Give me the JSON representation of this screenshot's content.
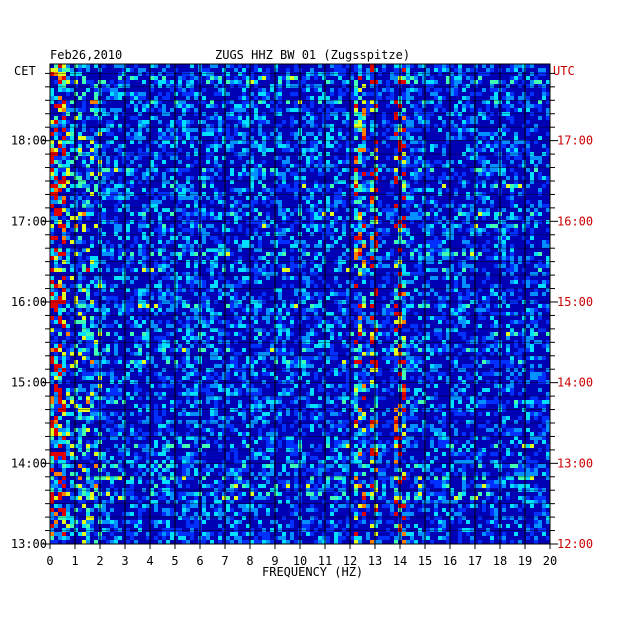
{
  "chart_data": {
    "type": "heatmap",
    "date": "Feb26,2010",
    "title": "ZUGS HHZ BW 01 (Zugsspitze)",
    "xlabel": "FREQUENCY (HZ)",
    "left_axis_label": "CET",
    "right_axis_label": "UTC",
    "x_range": [
      0,
      20
    ],
    "x_ticks": [
      "0",
      "1",
      "2",
      "3",
      "4",
      "5",
      "6",
      "7",
      "8",
      "9",
      "10",
      "11",
      "12",
      "13",
      "14",
      "15",
      "16",
      "17",
      "18",
      "19",
      "20"
    ],
    "left_ticks": [
      {
        "hour": 18,
        "label": "18:00"
      },
      {
        "hour": 17,
        "label": "17:00"
      },
      {
        "hour": 16,
        "label": "16:00"
      },
      {
        "hour": 15,
        "label": "15:00"
      },
      {
        "hour": 14,
        "label": "14:00"
      },
      {
        "hour": 13,
        "label": "13:00"
      }
    ],
    "right_ticks": [
      {
        "hour": 17,
        "label": "17:00"
      },
      {
        "hour": 16,
        "label": "16:00"
      },
      {
        "hour": 15,
        "label": "15:00"
      },
      {
        "hour": 14,
        "label": "14:00"
      },
      {
        "hour": 13,
        "label": "13:00"
      },
      {
        "hour": 12,
        "label": "12:00"
      }
    ],
    "time_range_cet_hours": [
      13,
      18.95
    ],
    "grid": true,
    "colors": {
      "background": "#0000b4",
      "grid": "#000000",
      "hour_line": "#000000",
      "utc_text": "#cc0000"
    },
    "intensity_scale": [
      "#0000b4",
      "#0030ff",
      "#0090ff",
      "#00e0ff",
      "#40ffb0",
      "#e0ff20",
      "#ff8000",
      "#e00000"
    ],
    "noise_bands": [
      {
        "freq_range": [
          0,
          0.6
        ],
        "strength": 0.95
      },
      {
        "freq_range": [
          0.6,
          2
        ],
        "strength": 0.45
      },
      {
        "freq_range": [
          2,
          12
        ],
        "strength": 0.3
      },
      {
        "freq_range": [
          12.1,
          12.6
        ],
        "strength": 0.6
      },
      {
        "freq_range": [
          12.8,
          13.1
        ],
        "strength": 0.7
      },
      {
        "freq_range": [
          13.7,
          14.2
        ],
        "strength": 0.75
      },
      {
        "freq_range": [
          14.2,
          20
        ],
        "strength": 0.28
      }
    ]
  }
}
